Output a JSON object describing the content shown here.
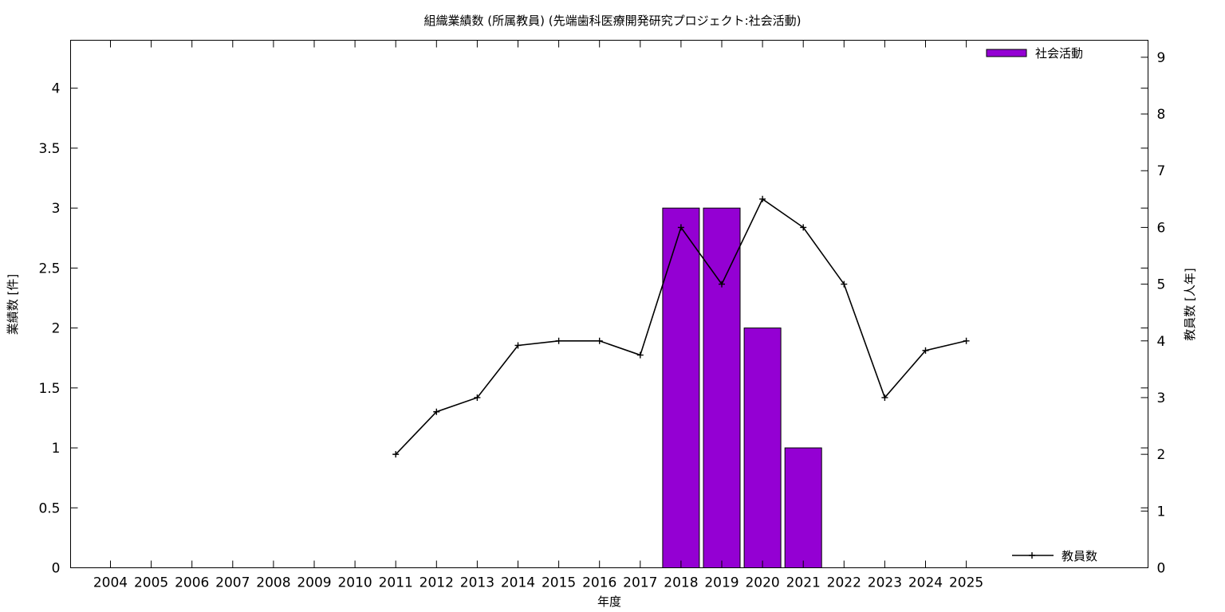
{
  "chart_data": {
    "type": "bar",
    "title": "組織業績数 (所属教員) (先端歯科医療開発研究プロジェクト:社会活動)",
    "xlabel": "年度",
    "ylabel": "業績数 [件]",
    "y2label": "教員数 [人年]",
    "categories": [
      "2004",
      "2005",
      "2006",
      "2007",
      "2008",
      "2009",
      "2010",
      "2011",
      "2012",
      "2013",
      "2014",
      "2015",
      "2016",
      "2017",
      "2018",
      "2019",
      "2020",
      "2021",
      "2022",
      "2023",
      "2024",
      "2025"
    ],
    "ylim": [
      0,
      4.4
    ],
    "yticks": [
      "0",
      "0.5",
      "1",
      "1.5",
      "2",
      "2.5",
      "3",
      "3.5",
      "4"
    ],
    "y2lim": [
      0,
      9.3
    ],
    "y2ticks": [
      "0",
      "1",
      "2",
      "3",
      "4",
      "5",
      "6",
      "7",
      "8",
      "9"
    ],
    "grid": false,
    "legend_placement": "top-right / bottom-right",
    "series": [
      {
        "name": "社会活動",
        "type": "bar",
        "axis": "left",
        "color": "#9400d3",
        "values": [
          0,
          0,
          0,
          0,
          0,
          0,
          0,
          0,
          0,
          0,
          0,
          0,
          0,
          0,
          3,
          3,
          2,
          1,
          0,
          0,
          0,
          0
        ]
      },
      {
        "name": "教員数",
        "type": "line",
        "axis": "right",
        "color": "#000000",
        "values": [
          null,
          null,
          null,
          null,
          null,
          null,
          null,
          2,
          2.75,
          3,
          3.92,
          4,
          4,
          3.75,
          6,
          5,
          6.5,
          6,
          5,
          3,
          3.83,
          4
        ]
      }
    ]
  }
}
